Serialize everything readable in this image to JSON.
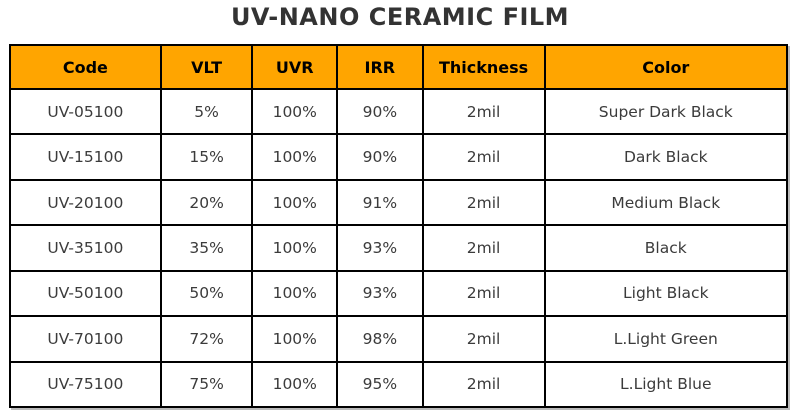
{
  "title": "UV-NANO CERAMIC FILM",
  "colors": {
    "header_bg": "#FFA500",
    "header_text": "#000000",
    "border": "#000000",
    "title_text": "#333333",
    "cell_text": "#3b3b3b",
    "background": "#ffffff"
  },
  "table": {
    "headers": [
      "Code",
      "VLT",
      "UVR",
      "IRR",
      "Thickness",
      "Color"
    ],
    "column_widths_pct": [
      19.4,
      11.8,
      10.9,
      11.0,
      15.7,
      31.2
    ],
    "rows": [
      [
        "UV-05100",
        "5%",
        "100%",
        "90%",
        "2mil",
        "Super Dark Black"
      ],
      [
        "UV-15100",
        "15%",
        "100%",
        "90%",
        "2mil",
        "Dark Black"
      ],
      [
        "UV-20100",
        "20%",
        "100%",
        "91%",
        "2mil",
        "Medium Black"
      ],
      [
        "UV-35100",
        "35%",
        "100%",
        "93%",
        "2mil",
        "Black"
      ],
      [
        "UV-50100",
        "50%",
        "100%",
        "93%",
        "2mil",
        "Light Black"
      ],
      [
        "UV-70100",
        "72%",
        "100%",
        "98%",
        "2mil",
        "L.Light Green"
      ],
      [
        "UV-75100",
        "75%",
        "100%",
        "95%",
        "2mil",
        "L.Light Blue"
      ]
    ]
  },
  "chart_data": {
    "type": "table",
    "title": "UV-NANO CERAMIC FILM",
    "columns": [
      "Code",
      "VLT",
      "UVR",
      "IRR",
      "Thickness",
      "Color"
    ],
    "rows": [
      [
        "UV-05100",
        "5%",
        "100%",
        "90%",
        "2mil",
        "Super Dark Black"
      ],
      [
        "UV-15100",
        "15%",
        "100%",
        "90%",
        "2mil",
        "Dark Black"
      ],
      [
        "UV-20100",
        "20%",
        "100%",
        "91%",
        "2mil",
        "Medium Black"
      ],
      [
        "UV-35100",
        "35%",
        "100%",
        "93%",
        "2mil",
        "Black"
      ],
      [
        "UV-50100",
        "50%",
        "100%",
        "93%",
        "2mil",
        "Light Black"
      ],
      [
        "UV-70100",
        "72%",
        "100%",
        "98%",
        "2mil",
        "L.Light Green"
      ],
      [
        "UV-75100",
        "75%",
        "100%",
        "95%",
        "2mil",
        "L.Light Blue"
      ]
    ],
    "layout": {
      "header_fill": "#FFA500",
      "grid": "on",
      "title_position": "top-center"
    }
  }
}
